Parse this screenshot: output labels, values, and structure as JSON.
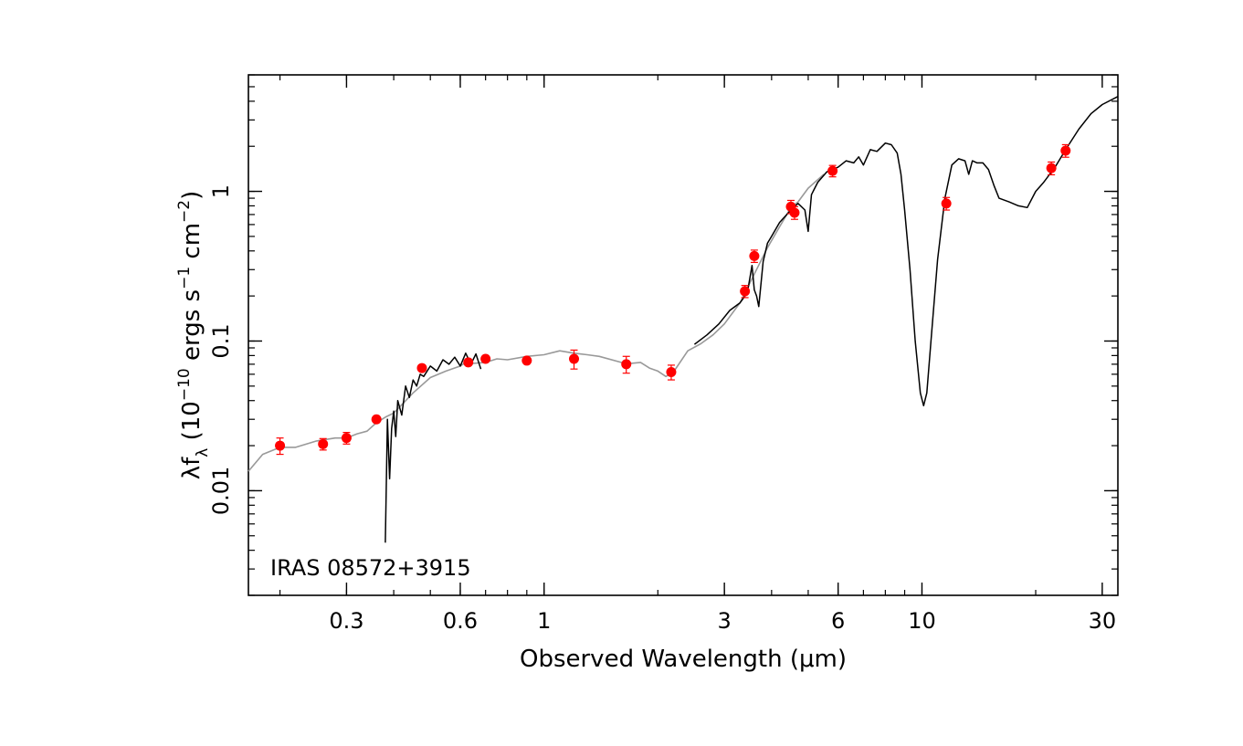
{
  "chart_data": {
    "type": "scatter",
    "title": "",
    "annotation": "IRAS 08572+3915",
    "xlabel": "Observed Wavelength (μm)",
    "ylabel_parts": {
      "main": "λf",
      "sub": "λ",
      "unit_open": " (10",
      "unit_exp": "−10",
      "unit_mid": " ergs s",
      "unit_exp2": "−1",
      "unit_mid2": " cm",
      "unit_exp3": "−2",
      "unit_close": ")"
    },
    "x_scale": "log",
    "y_scale": "log",
    "xlim": [
      0.165,
      33
    ],
    "ylim": [
      0.002,
      6
    ],
    "x_ticks": [
      0.3,
      0.6,
      1,
      3,
      6,
      10,
      30
    ],
    "x_tick_labels": [
      "0.3",
      "0.6",
      "1",
      "3",
      "6",
      "10",
      "30"
    ],
    "y_ticks": [
      0.01,
      0.1,
      1
    ],
    "y_tick_labels": [
      "0.01",
      "0.1",
      "1"
    ],
    "colors": {
      "photometry": "#ff0000",
      "template": "#999999",
      "spectrum": "#000000"
    },
    "series": [
      {
        "role": "photometry",
        "x": [
          0.2,
          0.26,
          0.3,
          0.36,
          0.475,
          0.63,
          0.7,
          0.9,
          1.2,
          1.65,
          2.17,
          3.4,
          3.6,
          4.5,
          4.6,
          5.8,
          11.6,
          22,
          24
        ],
        "y": [
          0.02,
          0.0205,
          0.0225,
          0.03,
          0.066,
          0.072,
          0.076,
          0.074,
          0.076,
          0.07,
          0.062,
          0.215,
          0.37,
          0.79,
          0.72,
          1.37,
          0.83,
          1.43,
          1.87
        ],
        "yerr": [
          0.0025,
          0.0018,
          0.002,
          0.001,
          0.003,
          0.003,
          0.0025,
          0.002,
          0.011,
          0.009,
          0.007,
          0.02,
          0.035,
          0.08,
          0.07,
          0.12,
          0.08,
          0.14,
          0.18
        ]
      },
      {
        "role": "template",
        "x": [
          0.165,
          0.18,
          0.2,
          0.22,
          0.25,
          0.28,
          0.3,
          0.32,
          0.34,
          0.36,
          0.38,
          0.4,
          0.45,
          0.5,
          0.55,
          0.6,
          0.62,
          0.65,
          0.7,
          0.75,
          0.8,
          0.9,
          1.0,
          1.1,
          1.2,
          1.3,
          1.4,
          1.6,
          1.7,
          1.8,
          1.9,
          2.0,
          2.1,
          2.2,
          2.4,
          2.6,
          2.8,
          3.0,
          3.3,
          3.6,
          3.9,
          4.2,
          4.5,
          4.7,
          5.0,
          5.5
        ],
        "y": [
          0.0135,
          0.0175,
          0.0195,
          0.0195,
          0.0215,
          0.0225,
          0.0225,
          0.024,
          0.025,
          0.0285,
          0.031,
          0.033,
          0.045,
          0.057,
          0.063,
          0.068,
          0.072,
          0.071,
          0.072,
          0.076,
          0.075,
          0.079,
          0.081,
          0.086,
          0.083,
          0.081,
          0.079,
          0.072,
          0.071,
          0.072,
          0.066,
          0.063,
          0.058,
          0.062,
          0.086,
          0.096,
          0.11,
          0.13,
          0.18,
          0.28,
          0.42,
          0.58,
          0.78,
          0.85,
          1.05,
          1.3
        ]
      },
      {
        "role": "optical_spectrum",
        "x": [
          0.38,
          0.385,
          0.39,
          0.395,
          0.4,
          0.405,
          0.41,
          0.42,
          0.43,
          0.44,
          0.45,
          0.46,
          0.47,
          0.48,
          0.5,
          0.52,
          0.54,
          0.56,
          0.58,
          0.6,
          0.62,
          0.64,
          0.66,
          0.68
        ],
        "y": [
          0.0045,
          0.03,
          0.012,
          0.026,
          0.034,
          0.023,
          0.04,
          0.032,
          0.05,
          0.042,
          0.055,
          0.05,
          0.06,
          0.058,
          0.068,
          0.063,
          0.075,
          0.07,
          0.078,
          0.068,
          0.083,
          0.07,
          0.082,
          0.065
        ]
      },
      {
        "role": "ir_spectrum",
        "x": [
          2.5,
          2.7,
          2.9,
          3.1,
          3.3,
          3.45,
          3.55,
          3.6,
          3.65,
          3.7,
          3.8,
          3.9,
          4.0,
          4.2,
          4.5,
          4.7,
          4.9,
          5.0,
          5.1,
          5.3,
          5.6,
          6.0,
          6.3,
          6.6,
          6.8,
          7.0,
          7.3,
          7.6,
          8.0,
          8.3,
          8.6,
          8.8,
          9.0,
          9.3,
          9.6,
          9.9,
          10.1,
          10.3,
          10.6,
          11.0,
          11.5,
          12.0,
          12.5,
          13.0,
          13.3,
          13.6,
          14.0,
          14.5,
          15.0,
          15.5,
          16.0,
          17.0,
          18.0,
          19.0,
          20.0,
          21.0,
          22.5,
          24.0,
          26.0,
          28.0,
          30.0,
          33.0
        ],
        "y": [
          0.095,
          0.11,
          0.13,
          0.16,
          0.18,
          0.21,
          0.32,
          0.22,
          0.2,
          0.17,
          0.34,
          0.45,
          0.5,
          0.62,
          0.75,
          0.83,
          0.75,
          0.54,
          0.95,
          1.15,
          1.35,
          1.45,
          1.6,
          1.55,
          1.7,
          1.5,
          1.9,
          1.85,
          2.1,
          2.05,
          1.8,
          1.3,
          0.75,
          0.3,
          0.1,
          0.045,
          0.037,
          0.045,
          0.11,
          0.35,
          0.9,
          1.5,
          1.65,
          1.6,
          1.3,
          1.6,
          1.55,
          1.55,
          1.4,
          1.1,
          0.9,
          0.85,
          0.8,
          0.78,
          1.0,
          1.15,
          1.45,
          1.9,
          2.6,
          3.3,
          3.8,
          4.3
        ]
      }
    ]
  }
}
